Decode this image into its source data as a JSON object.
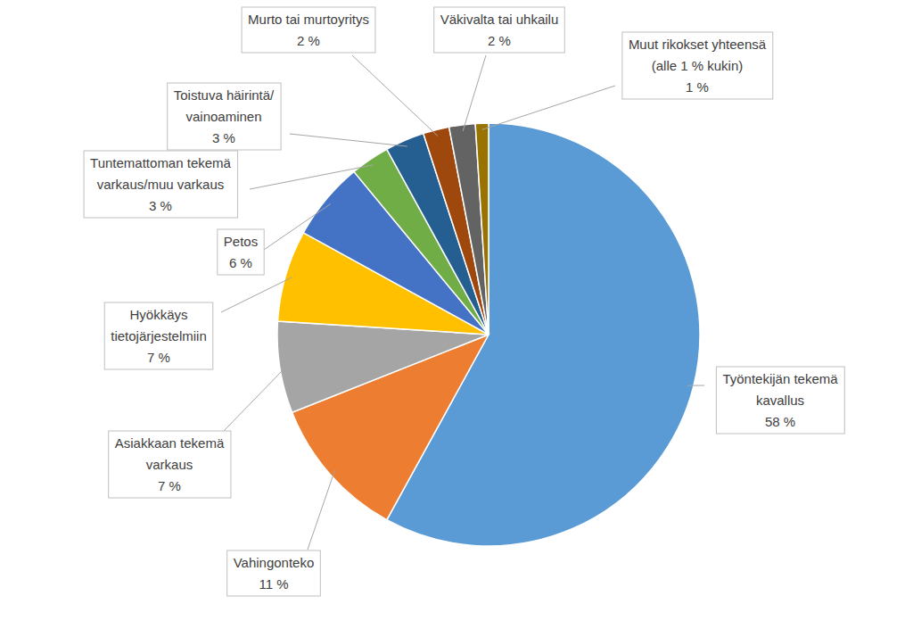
{
  "chart_data": {
    "type": "pie",
    "categories": [
      "Työntekijän tekemä\nkavallus",
      "Vahingonteko",
      "Asiakkaan tekemä\nvarkaus",
      "Hyökkäys\ntietojärjestelmiin",
      "Petos",
      "Tuntemattoman tekemä\nvarkaus/muu varkaus",
      "Toistuva häirintä/\nvainoaminen",
      "Murto tai murtoyritys",
      "Väkivalta tai uhkailu",
      "Muut rikokset yhteensä\n(alle 1 % kukin)"
    ],
    "values": [
      58,
      11,
      7,
      7,
      6,
      3,
      3,
      2,
      2,
      1
    ],
    "value_labels": [
      "58 %",
      "11 %",
      "7 %",
      "7 %",
      "6 %",
      "3 %",
      "3 %",
      "2 %",
      "2 %",
      "1 %"
    ],
    "colors": [
      "#5b9bd5",
      "#ed7d31",
      "#a5a5a5",
      "#ffc000",
      "#4472c4",
      "#70ad47",
      "#255e91",
      "#9e480e",
      "#636363",
      "#997300"
    ],
    "data_labels": true
  }
}
